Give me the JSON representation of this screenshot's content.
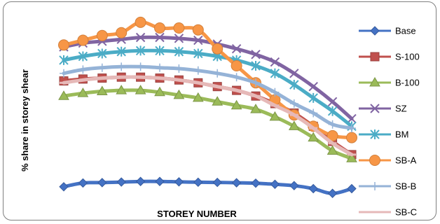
{
  "chart_data": {
    "type": "line",
    "title": "",
    "xlabel": "STOREY NUMBER",
    "ylabel": "% share in storey shear",
    "x": [
      1,
      2,
      3,
      4,
      5,
      6,
      7,
      8,
      9,
      10,
      11,
      12,
      13,
      14,
      15,
      16
    ],
    "ylim": [
      0,
      100
    ],
    "grid": false,
    "legend_position": "right",
    "series": [
      {
        "name": "Base",
        "color": "#4472C4",
        "marker": "diamond",
        "values": [
          16,
          18,
          18.2,
          18.5,
          18.8,
          18.8,
          18.6,
          18.4,
          18.3,
          18.1,
          17.9,
          17.3,
          16.6,
          15,
          12.5,
          15
        ]
      },
      {
        "name": "S-100",
        "color": "#C0504D",
        "marker": "square",
        "values": [
          72,
          73,
          73.5,
          74,
          74,
          73.5,
          72.5,
          71,
          69,
          67,
          64,
          60,
          55,
          48,
          40,
          33
        ]
      },
      {
        "name": "B-100",
        "color": "#9BBB59",
        "marker": "triangle",
        "values": [
          64,
          65.5,
          66.5,
          67,
          67,
          66,
          64.5,
          63,
          61,
          59,
          57,
          53,
          48,
          42,
          35,
          31
        ]
      },
      {
        "name": "SZ",
        "color": "#8064A2",
        "marker": "x",
        "values": [
          90,
          92,
          93,
          94,
          95,
          95,
          94.5,
          93.5,
          91.5,
          89,
          86,
          82,
          76,
          69,
          61,
          52
        ]
      },
      {
        "name": "BM",
        "color": "#4BACC6",
        "marker": "asterisk",
        "values": [
          83,
          85,
          86.5,
          87.5,
          88,
          88,
          87.5,
          86.5,
          85,
          83,
          80,
          76,
          70,
          63,
          56,
          48
        ]
      },
      {
        "name": "SB-A",
        "color": "#F79646",
        "marker": "circle",
        "values": [
          91,
          93.5,
          96,
          97.5,
          103,
          100,
          100,
          99,
          89,
          80,
          71,
          62,
          54,
          48,
          43,
          42
        ]
      },
      {
        "name": "SB-B",
        "color": "#95B3D7",
        "marker": "plus",
        "values": [
          76,
          78,
          79,
          79.5,
          79.5,
          79,
          78.5,
          77.5,
          76,
          74,
          71,
          66,
          60,
          55,
          49,
          47
        ]
      },
      {
        "name": "SB-C",
        "color": "#E6B9B8",
        "marker": "dash",
        "values": [
          71,
          72.5,
          73.5,
          74,
          74,
          73.5,
          72.5,
          71,
          69,
          67,
          64,
          59,
          54,
          47,
          39,
          33
        ]
      }
    ]
  }
}
